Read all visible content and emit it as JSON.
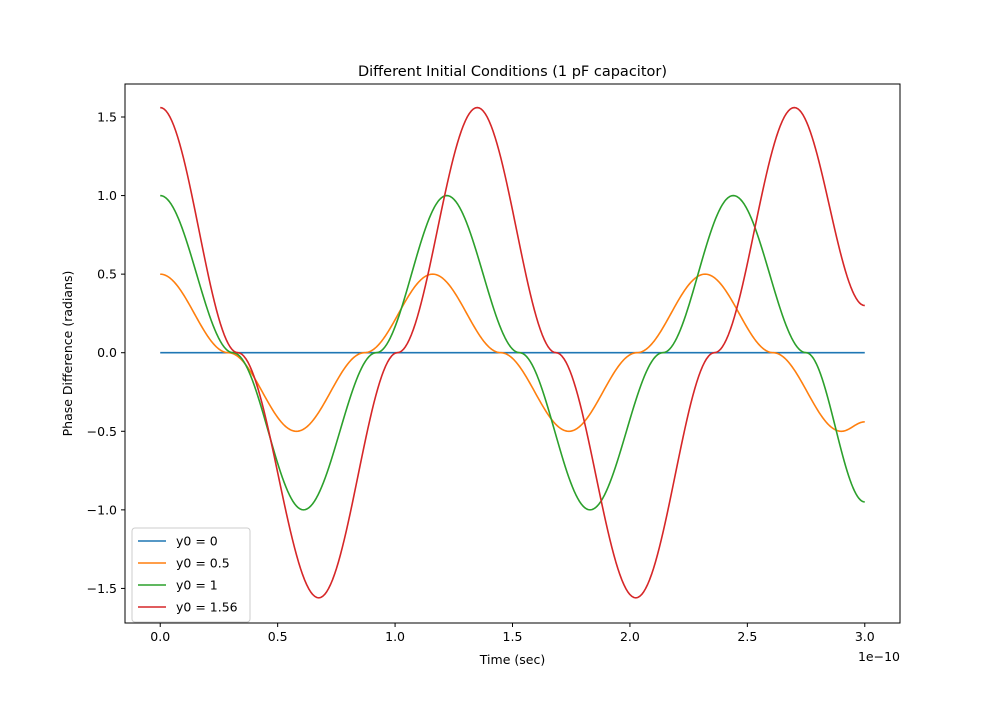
{
  "chart_data": {
    "type": "line",
    "title": "Different Initial Conditions (1 pF capacitor)",
    "xlabel": "Time (sec)",
    "ylabel": "Phase Difference (radians)",
    "x_offset_label": "1e−10",
    "xlim": [
      -0.15,
      3.15
    ],
    "ylim": [
      -1.72,
      1.71
    ],
    "x_range": [
      0,
      3.0
    ],
    "x_scale_factor": 1e-10,
    "x_ticks": [
      0.0,
      0.5,
      1.0,
      1.5,
      2.0,
      2.5,
      3.0
    ],
    "x_tick_labels": [
      "0.0",
      "0.5",
      "1.0",
      "1.5",
      "2.0",
      "2.5",
      "3.0"
    ],
    "y_ticks": [
      -1.5,
      -1.0,
      -0.5,
      0.0,
      0.5,
      1.0,
      1.5
    ],
    "y_tick_labels": [
      "−1.5",
      "−1.0",
      "−0.5",
      "0.0",
      "0.5",
      "1.0",
      "1.5"
    ],
    "grid": false,
    "legend_position": "lower-left",
    "series": [
      {
        "name": "y0 = 0",
        "color": "#1f77b4",
        "points": [
          [
            0.0,
            0.0
          ],
          [
            3.0,
            0.0
          ]
        ]
      },
      {
        "name": "y0 = 0.5",
        "color": "#ff7f0e",
        "points": [
          [
            0.0,
            0.5
          ],
          [
            0.29,
            0.0
          ],
          [
            0.58,
            -0.5
          ],
          [
            0.87,
            0.0
          ],
          [
            1.16,
            0.5
          ],
          [
            1.45,
            0.0
          ],
          [
            1.74,
            -0.5
          ],
          [
            2.03,
            0.0
          ],
          [
            2.32,
            0.5
          ],
          [
            2.61,
            0.0
          ],
          [
            2.9,
            -0.5
          ],
          [
            3.0,
            -0.44
          ]
        ]
      },
      {
        "name": "y0 = 1",
        "color": "#2ca02c",
        "points": [
          [
            0.0,
            1.0
          ],
          [
            0.31,
            0.0
          ],
          [
            0.61,
            -1.0
          ],
          [
            0.92,
            0.0
          ],
          [
            1.22,
            1.0
          ],
          [
            1.53,
            0.0
          ],
          [
            1.83,
            -1.0
          ],
          [
            2.14,
            0.0
          ],
          [
            2.44,
            1.0
          ],
          [
            2.75,
            0.0
          ],
          [
            3.0,
            -0.95
          ]
        ]
      },
      {
        "name": "y0 = 1.56",
        "color": "#d62728",
        "points": [
          [
            0.0,
            1.56
          ],
          [
            0.33,
            0.0
          ],
          [
            0.675,
            -1.56
          ],
          [
            1.01,
            0.0
          ],
          [
            1.35,
            1.56
          ],
          [
            1.685,
            0.0
          ],
          [
            2.025,
            -1.56
          ],
          [
            2.36,
            0.0
          ],
          [
            2.7,
            1.56
          ],
          [
            3.0,
            0.3
          ]
        ]
      }
    ]
  }
}
